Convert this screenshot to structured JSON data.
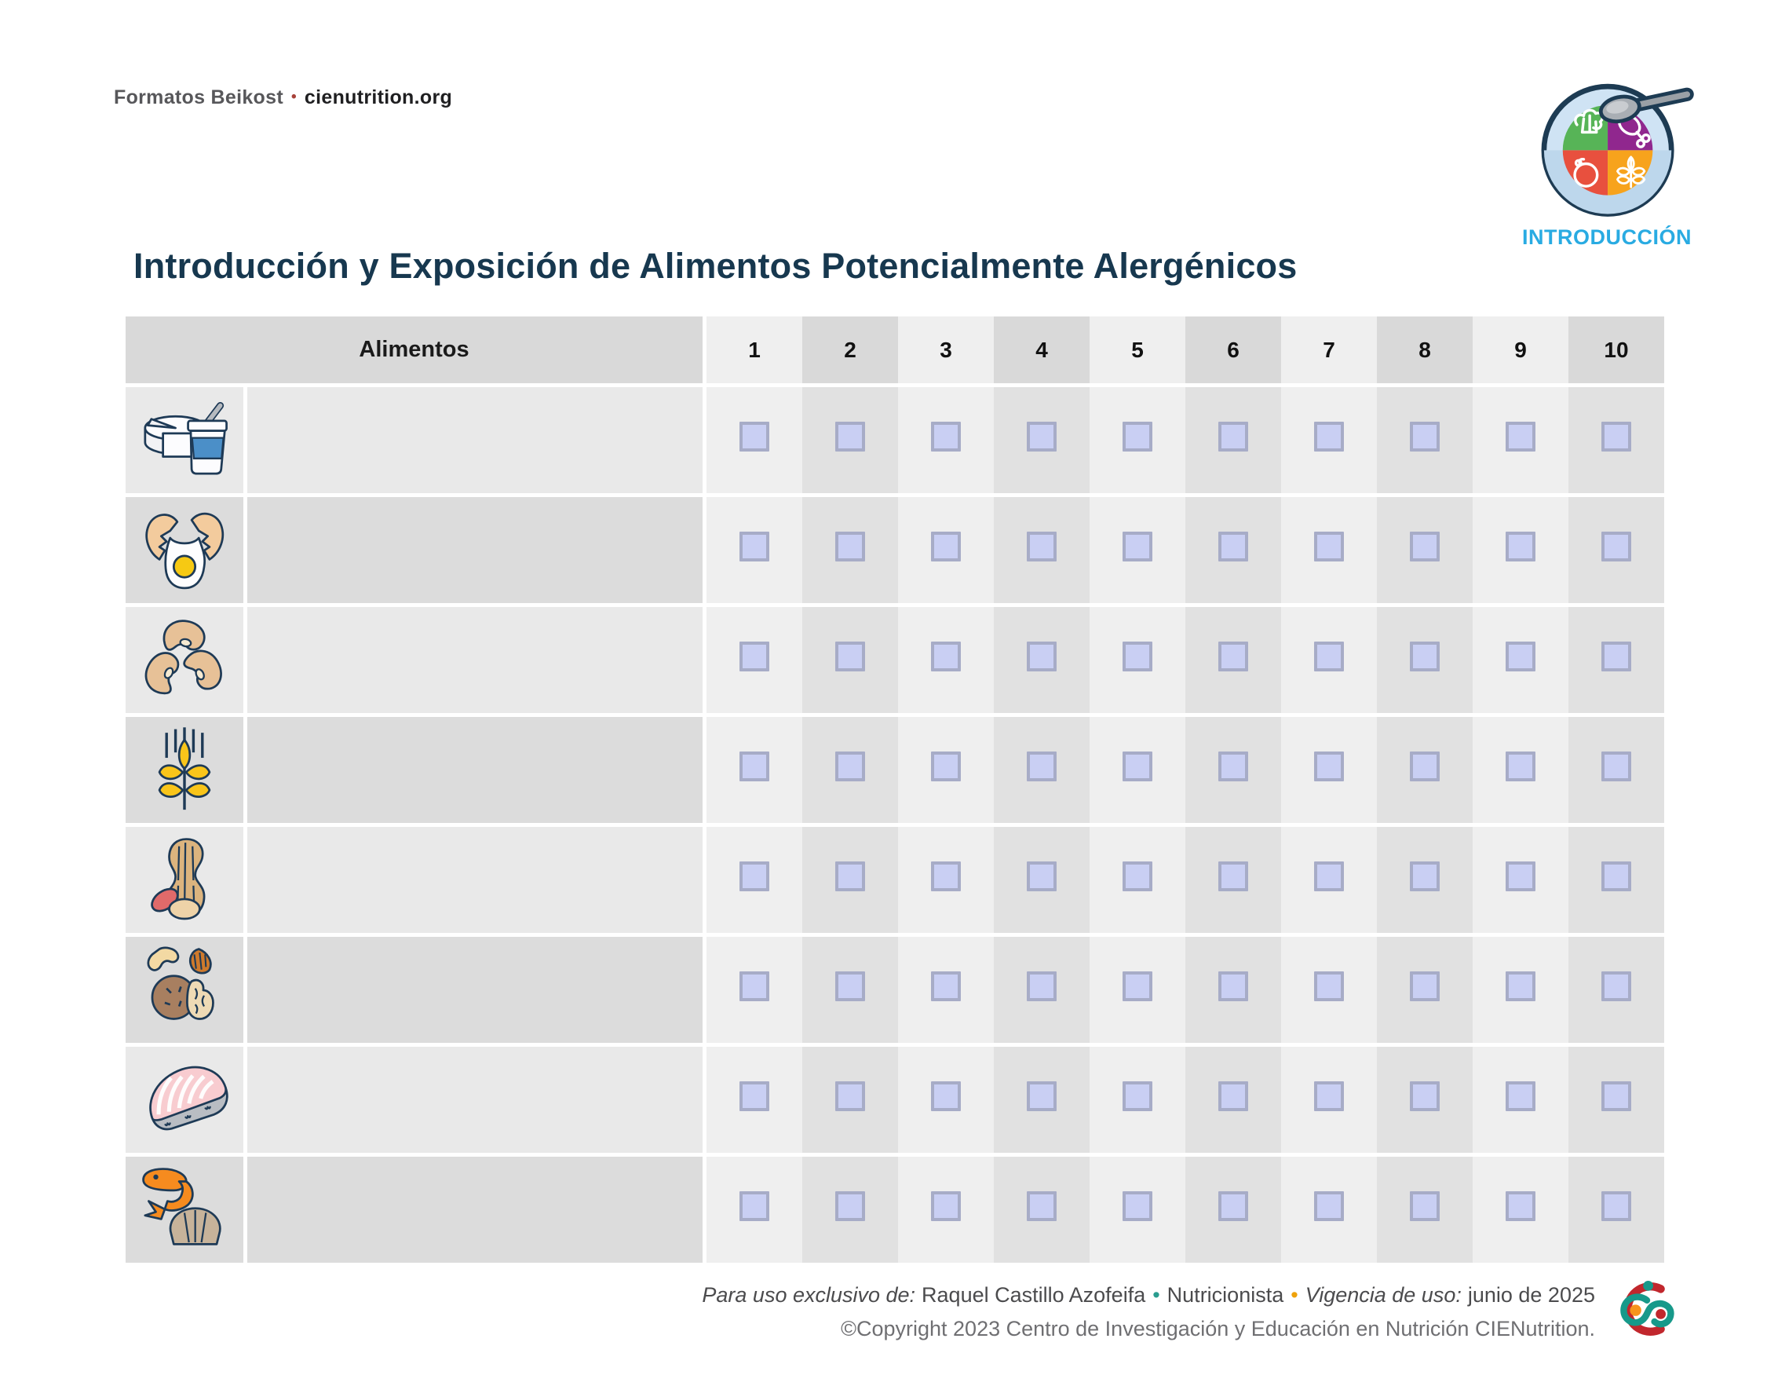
{
  "header": {
    "brand_prefix": "Formatos Beikost",
    "brand_separator": "•",
    "brand_site": "cienutrition.org",
    "badge_label": "INTRODUCCIÓN",
    "badge_icon": "plate-spoon-logo-icon"
  },
  "title": "Introducción y Exposición de Alimentos Potencialmente Alergénicos",
  "table": {
    "header": {
      "alimentos": "Alimentos",
      "exposures": [
        "1",
        "2",
        "3",
        "4",
        "5",
        "6",
        "7",
        "8",
        "9",
        "10"
      ]
    },
    "rows": [
      {
        "icon": "dairy-icon",
        "food_name": "",
        "checkboxes": [
          false,
          false,
          false,
          false,
          false,
          false,
          false,
          false,
          false,
          false
        ]
      },
      {
        "icon": "egg-icon",
        "food_name": "",
        "checkboxes": [
          false,
          false,
          false,
          false,
          false,
          false,
          false,
          false,
          false,
          false
        ]
      },
      {
        "icon": "beans-icon",
        "food_name": "",
        "checkboxes": [
          false,
          false,
          false,
          false,
          false,
          false,
          false,
          false,
          false,
          false
        ]
      },
      {
        "icon": "wheat-icon",
        "food_name": "",
        "checkboxes": [
          false,
          false,
          false,
          false,
          false,
          false,
          false,
          false,
          false,
          false
        ]
      },
      {
        "icon": "peanut-icon",
        "food_name": "",
        "checkboxes": [
          false,
          false,
          false,
          false,
          false,
          false,
          false,
          false,
          false,
          false
        ]
      },
      {
        "icon": "tree-nuts-icon",
        "food_name": "",
        "checkboxes": [
          false,
          false,
          false,
          false,
          false,
          false,
          false,
          false,
          false,
          false
        ]
      },
      {
        "icon": "fish-icon",
        "food_name": "",
        "checkboxes": [
          false,
          false,
          false,
          false,
          false,
          false,
          false,
          false,
          false,
          false
        ]
      },
      {
        "icon": "shellfish-icon",
        "food_name": "",
        "checkboxes": [
          false,
          false,
          false,
          false,
          false,
          false,
          false,
          false,
          false,
          false
        ]
      }
    ]
  },
  "footer": {
    "line1": {
      "exclusive_label": "Para uso exclusivo de:",
      "user_name": "Raquel Castillo Azofeifa",
      "bullet1": "•",
      "role": "Nutricionista",
      "bullet2": "•",
      "validity_label": "Vigencia de uso:",
      "validity_value": "junio de 2025"
    },
    "line2": "©Copyright 2023 Centro de Investigación y Educación en Nutrición CIENutrition.",
    "logo": "cienutrition-logo-icon"
  },
  "colors": {
    "accent_cyan": "#29abe2",
    "title": "#17384f",
    "checkbox_fill": "#c9cff3",
    "checkbox_border": "#a7acc7",
    "bullet_teal": "#2a9d8f",
    "bullet_orange": "#efa20b",
    "logo_red": "#c1272d",
    "logo_teal": "#17998a",
    "logo_orange": "#f7941d"
  }
}
